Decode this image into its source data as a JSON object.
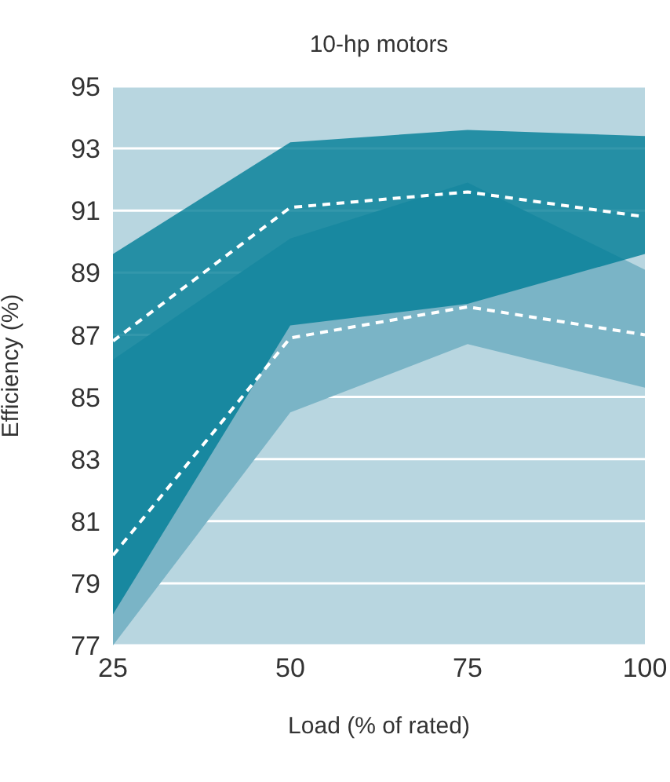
{
  "chart_data": {
    "type": "line",
    "title": "10-hp motors",
    "xlabel": "Load (% of rated)",
    "ylabel": "Efficiency (%)",
    "x": [
      25,
      50,
      75,
      100
    ],
    "series": [
      {
        "color": "#ffffff",
        "values": [
          79.9,
          86.9,
          87.9,
          87.0
        ],
        "lower": [
          77.0,
          84.5,
          86.7,
          85.3
        ],
        "upper": [
          86.2,
          90.1,
          91.9,
          89.1
        ],
        "line_style": "dashed"
      },
      {
        "color": "#ffffff",
        "values": [
          86.8,
          91.1,
          91.6,
          90.8
        ],
        "lower": [
          78.0,
          87.3,
          88.0,
          89.6
        ],
        "upper": [
          89.6,
          93.2,
          93.6,
          93.4
        ],
        "line_style": "dashed"
      }
    ],
    "xlim": [
      25,
      100
    ],
    "xticks": [
      25,
      50,
      75,
      100
    ],
    "ylim": [
      77,
      95
    ],
    "yticks": [
      77,
      79,
      81,
      83,
      85,
      87,
      89,
      91,
      93,
      95
    ],
    "grid": "y",
    "legend": false
  }
}
